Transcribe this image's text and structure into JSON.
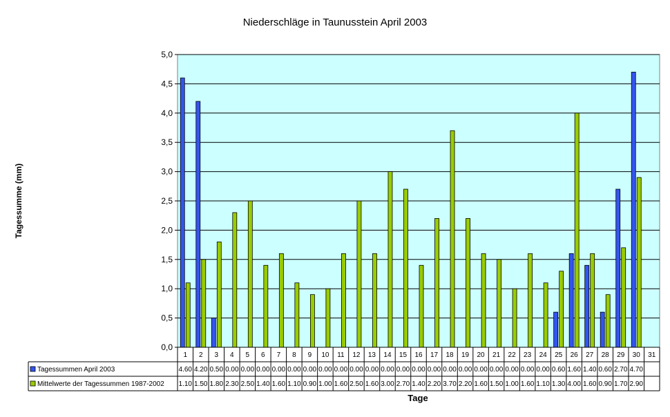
{
  "chart_data": {
    "type": "bar",
    "title": "Niederschläge in Taunusstein April 2003",
    "xlabel": "Tage",
    "ylabel": "Tagessumme (mm)",
    "ylim": [
      0,
      5
    ],
    "yticks": [
      "0,0",
      "0,5",
      "1,0",
      "1,5",
      "2,0",
      "2,5",
      "3,0",
      "3,5",
      "4,0",
      "4,5",
      "5,0"
    ],
    "grid": true,
    "legend": "data-table-left",
    "plot_background": "#ccffff",
    "categories": [
      "1",
      "2",
      "3",
      "4",
      "5",
      "6",
      "7",
      "8",
      "9",
      "10",
      "11",
      "12",
      "13",
      "14",
      "15",
      "16",
      "17",
      "18",
      "19",
      "20",
      "21",
      "22",
      "23",
      "24",
      "25",
      "26",
      "27",
      "28",
      "29",
      "30",
      "31"
    ],
    "series": [
      {
        "name": "Tagessummen April 2003",
        "color": "#3355ee",
        "values": [
          4.6,
          4.2,
          0.5,
          0,
          0,
          0,
          0,
          0,
          0,
          0,
          0,
          0,
          0,
          0,
          0,
          0,
          0,
          0,
          0,
          0,
          0,
          0,
          0,
          0,
          0.6,
          1.6,
          1.4,
          0.6,
          2.7,
          4.7,
          null
        ],
        "labels": [
          "4.60",
          "4.20",
          "0.50",
          "0.00",
          "0.00",
          "0.00",
          "0.00",
          "0.00",
          "0.00",
          "0.00",
          "0.00",
          "0.00",
          "0.00",
          "0.00",
          "0.00",
          "0.00",
          "0.00",
          "0.00",
          "0.00",
          "0.00",
          "0.00",
          "0.00",
          "0.00",
          "0.00",
          "0.60",
          "1.60",
          "1.40",
          "0.60",
          "2.70",
          "4.70",
          ""
        ]
      },
      {
        "name": "Mittelwerte der Tagessummen 1987-2002",
        "color": "#99cc00",
        "values": [
          1.1,
          1.5,
          1.8,
          2.3,
          2.5,
          1.4,
          1.6,
          1.1,
          0.9,
          1.0,
          1.6,
          2.5,
          1.6,
          3.0,
          2.7,
          1.4,
          2.2,
          3.7,
          2.2,
          1.6,
          1.5,
          1.0,
          1.6,
          1.1,
          1.3,
          4.0,
          1.6,
          0.9,
          1.7,
          2.9,
          null
        ],
        "labels": [
          "1.10",
          "1.50",
          "1.80",
          "2.30",
          "2.50",
          "1.40",
          "1.60",
          "1.10",
          "0.90",
          "1.00",
          "1.60",
          "2.50",
          "1.60",
          "3.00",
          "2.70",
          "1.40",
          "2.20",
          "3.70",
          "2.20",
          "1.60",
          "1.50",
          "1.00",
          "1.60",
          "1.10",
          "1.30",
          "4.00",
          "1.60",
          "0.90",
          "1.70",
          "2.90",
          ""
        ]
      }
    ]
  }
}
